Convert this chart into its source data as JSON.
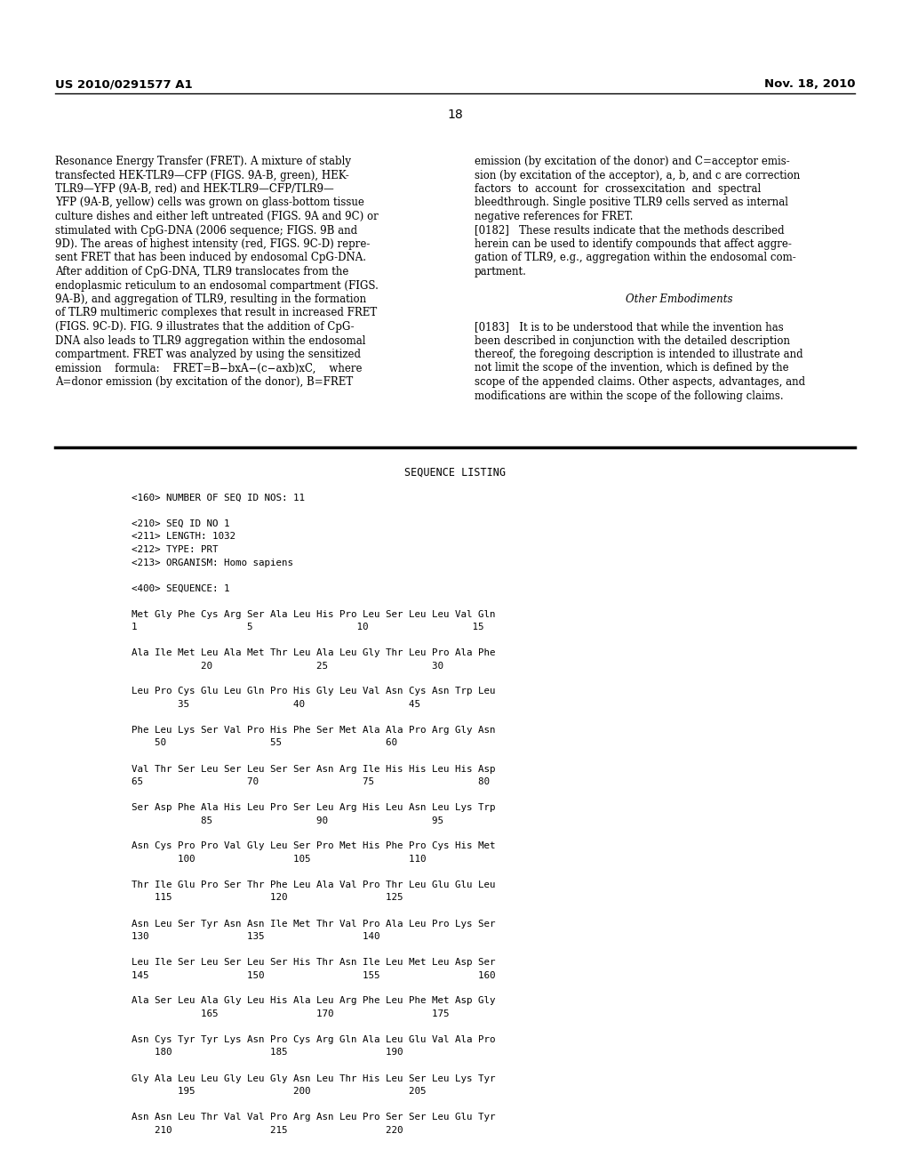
{
  "bg_color": "#ffffff",
  "header_left": "US 2010/0291577 A1",
  "header_right": "Nov. 18, 2010",
  "page_number": "18",
  "left_col_lines": [
    "Resonance Energy Transfer (FRET). A mixture of stably",
    "transfected HEK-TLR9—CFP (FIGS. 9A-B, green), HEK-",
    "TLR9—YFP (9A-B, red) and HEK-TLR9—CFP/TLR9—",
    "YFP (9A-B, yellow) cells was grown on glass-bottom tissue",
    "culture dishes and either left untreated (FIGS. 9A and 9C) or",
    "stimulated with CpG-DNA (2006 sequence; FIGS. 9B and",
    "9D). The areas of highest intensity (red, FIGS. 9C-D) repre-",
    "sent FRET that has been induced by endosomal CpG-DNA.",
    "After addition of CpG-DNA, TLR9 translocates from the",
    "endoplasmic reticulum to an endosomal compartment (FIGS.",
    "9A-B), and aggregation of TLR9, resulting in the formation",
    "of TLR9 multimeric complexes that result in increased FRET",
    "(FIGS. 9C-D). FIG. 9 illustrates that the addition of CpG-",
    "DNA also leads to TLR9 aggregation within the endosomal",
    "compartment. FRET was analyzed by using the sensitized",
    "emission    formula:    FRET=B−bxA−(c−axb)xC,    where",
    "A=donor emission (by excitation of the donor), B=FRET"
  ],
  "right_col_lines": [
    "emission (by excitation of the donor) and C=acceptor emis-",
    "sion (by excitation of the acceptor), a, b, and c are correction",
    "factors  to  account  for  crossexcitation  and  spectral",
    "bleedthrough. Single positive TLR9 cells served as internal",
    "negative references for FRET.",
    "[0182]   These results indicate that the methods described",
    "herein can be used to identify compounds that affect aggre-",
    "gation of TLR9, e.g., aggregation within the endosomal com-",
    "partment.",
    "",
    "Other Embodiments",
    "",
    "[0183]   It is to be understood that while the invention has",
    "been described in conjunction with the detailed description",
    "thereof, the foregoing description is intended to illustrate and",
    "not limit the scope of the invention, which is defined by the",
    "scope of the appended claims. Other aspects, advantages, and",
    "modifications are within the scope of the following claims."
  ],
  "seq_lines": [
    "<160> NUMBER OF SEQ ID NOS: 11",
    "",
    "<210> SEQ ID NO 1",
    "<211> LENGTH: 1032",
    "<212> TYPE: PRT",
    "<213> ORGANISM: Homo sapiens",
    "",
    "<400> SEQUENCE: 1",
    "",
    "Met Gly Phe Cys Arg Ser Ala Leu His Pro Leu Ser Leu Leu Val Gln",
    "1                   5                  10                  15",
    "",
    "Ala Ile Met Leu Ala Met Thr Leu Ala Leu Gly Thr Leu Pro Ala Phe",
    "            20                  25                  30",
    "",
    "Leu Pro Cys Glu Leu Gln Pro His Gly Leu Val Asn Cys Asn Trp Leu",
    "        35                  40                  45",
    "",
    "Phe Leu Lys Ser Val Pro His Phe Ser Met Ala Ala Pro Arg Gly Asn",
    "    50                  55                  60",
    "",
    "Val Thr Ser Leu Ser Leu Ser Ser Asn Arg Ile His His Leu His Asp",
    "65                  70                  75                  80",
    "",
    "Ser Asp Phe Ala His Leu Pro Ser Leu Arg His Leu Asn Leu Lys Trp",
    "            85                  90                  95",
    "",
    "Asn Cys Pro Pro Val Gly Leu Ser Pro Met His Phe Pro Cys His Met",
    "        100                 105                 110",
    "",
    "Thr Ile Glu Pro Ser Thr Phe Leu Ala Val Pro Thr Leu Glu Glu Leu",
    "    115                 120                 125",
    "",
    "Asn Leu Ser Tyr Asn Asn Ile Met Thr Val Pro Ala Leu Pro Lys Ser",
    "130                 135                 140",
    "",
    "Leu Ile Ser Leu Ser Leu Ser His Thr Asn Ile Leu Met Leu Asp Ser",
    "145                 150                 155                 160",
    "",
    "Ala Ser Leu Ala Gly Leu His Ala Leu Arg Phe Leu Phe Met Asp Gly",
    "            165                 170                 175",
    "",
    "Asn Cys Tyr Tyr Lys Asn Pro Cys Arg Gln Ala Leu Glu Val Ala Pro",
    "    180                 185                 190",
    "",
    "Gly Ala Leu Leu Gly Leu Gly Asn Leu Thr His Leu Ser Leu Lys Tyr",
    "        195                 200                 205",
    "",
    "Asn Asn Leu Thr Val Val Pro Arg Asn Leu Pro Ser Ser Leu Glu Tyr",
    "    210                 215                 220"
  ]
}
